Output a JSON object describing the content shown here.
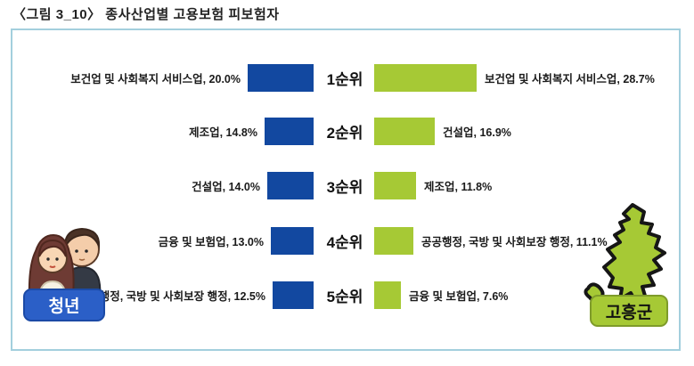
{
  "title": "〈그림 3_10〉 종사산업별 고용보험 피보험자",
  "colors": {
    "youth_bar": "#1248a0",
    "county_bar": "#a6c935",
    "youth_badge_bg": "#2b5fc7",
    "county_badge_bg": "#a6c935",
    "box_border": "#a3cfdd"
  },
  "badges": {
    "youth_label": "청년",
    "county_label": "고흥군"
  },
  "chart_data": {
    "type": "bar",
    "title": "종사산업별 고용보험 피보험자",
    "ranks": [
      "1순위",
      "2순위",
      "3순위",
      "4순위",
      "5순위"
    ],
    "series": [
      {
        "name": "청년",
        "items": [
          {
            "label": "보건업 및 사회복지 서비스업",
            "value": 20.0,
            "display": "보건업 및 사회복지 서비스업, 20.0%"
          },
          {
            "label": "제조업",
            "value": 14.8,
            "display": "제조업, 14.8%"
          },
          {
            "label": "건설업",
            "value": 14.0,
            "display": "건설업, 14.0%"
          },
          {
            "label": "금융 및 보험업",
            "value": 13.0,
            "display": "금융 및 보험업, 13.0%"
          },
          {
            "label": "공공행정, 국방 및 사회보장 행정",
            "value": 12.5,
            "display": "공공행정, 국방 및 사회보장 행정, 12.5%"
          }
        ]
      },
      {
        "name": "고흥군",
        "items": [
          {
            "label": "보건업 및 사회복지 서비스업",
            "value": 28.7,
            "display": "보건업 및 사회복지 서비스업, 28.7%"
          },
          {
            "label": "건설업",
            "value": 16.9,
            "display": "건설업, 16.9%"
          },
          {
            "label": "제조업",
            "value": 11.8,
            "display": "제조업, 11.8%"
          },
          {
            "label": "공공행정, 국방 및 사회보장 행정",
            "value": 11.1,
            "display": "공공행정, 국방 및 사회보장 행정, 11.1%"
          },
          {
            "label": "금융 및 보험업",
            "value": 7.6,
            "display": "금융 및 보험업, 7.6%"
          }
        ]
      }
    ],
    "unit": "%",
    "legend_position": "none",
    "grid": false
  }
}
